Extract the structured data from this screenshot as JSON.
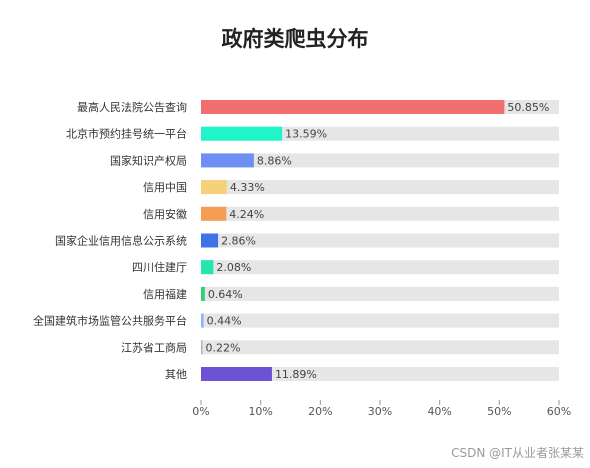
{
  "chart_data": {
    "type": "bar",
    "orientation": "horizontal",
    "title": "政府类爬虫分布",
    "categories": [
      "最高人民法院公告查询",
      "北京市预约挂号统一平台",
      "国家知识产权局",
      "信用中国",
      "信用安徽",
      "国家企业信用信息公示系统",
      "四川住建厅",
      "信用福建",
      "全国建筑市场监管公共服务平台",
      "江苏省工商局",
      "其他"
    ],
    "values": [
      50.85,
      13.59,
      8.86,
      4.33,
      4.24,
      2.86,
      2.08,
      0.64,
      0.44,
      0.22,
      11.89
    ],
    "value_labels": [
      "50.85%",
      "13.59%",
      "8.86%",
      "4.33%",
      "4.24%",
      "2.86%",
      "2.08%",
      "0.64%",
      "0.44%",
      "0.22%",
      "11.89%"
    ],
    "colors": [
      "#f26d6d",
      "#1ff5c8",
      "#6f8ff5",
      "#f5d27a",
      "#f59d52",
      "#3e73e8",
      "#24e6b0",
      "#2fd07a",
      "#8fb3f5",
      "#b5b5b5",
      "#6e52d6"
    ],
    "track_color": "#e6e6e6",
    "xlim": [
      0,
      60
    ],
    "xticks": [
      0,
      10,
      20,
      30,
      40,
      50,
      60
    ],
    "xtick_labels": [
      "0%",
      "10%",
      "20%",
      "30%",
      "40%",
      "50%",
      "60%"
    ],
    "xlabel": "",
    "ylabel": "",
    "grid": false,
    "legend": "none"
  },
  "watermark": "CSDN @IT从业者张某某"
}
